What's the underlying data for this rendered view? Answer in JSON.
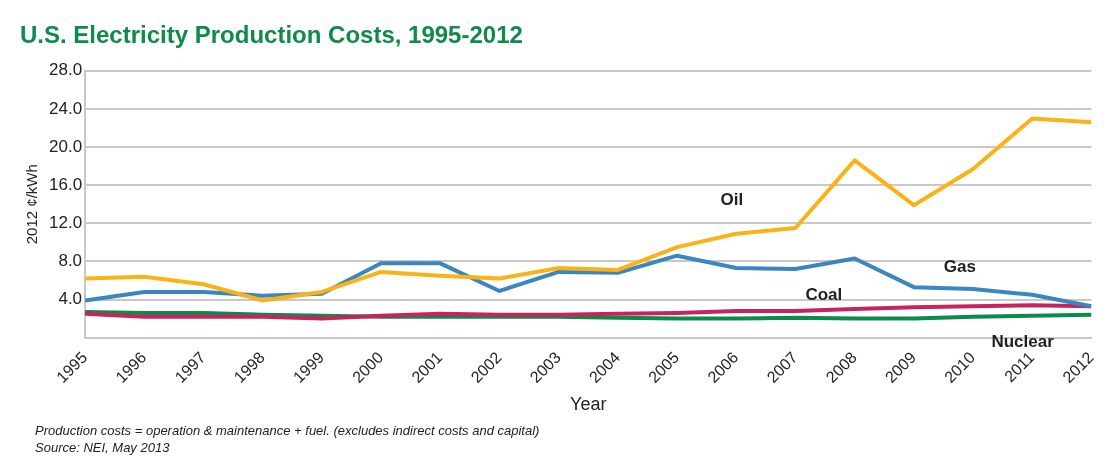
{
  "chart_data": {
    "type": "line",
    "title": "U.S. Electricity Production Costs, 1995-2012",
    "xlabel": "Year",
    "ylabel": "2012 ¢/kWh",
    "x": [
      1995,
      1996,
      1997,
      1998,
      1999,
      2000,
      2001,
      2002,
      2003,
      2004,
      2005,
      2006,
      2007,
      2008,
      2009,
      2010,
      2011,
      2012
    ],
    "xlim": [
      1995,
      2012
    ],
    "xticks": [
      1995,
      1996,
      1997,
      1998,
      1999,
      2000,
      2001,
      2002,
      2003,
      2004,
      2005,
      2006,
      2007,
      2008,
      2009,
      2010,
      2011,
      2012
    ],
    "ylim": [
      0,
      28
    ],
    "yticks": [
      {
        "value": 0,
        "label": null
      },
      {
        "value": 4,
        "label": "4.0"
      },
      {
        "value": 8,
        "label": "8.0"
      },
      {
        "value": 12,
        "label": "12.0"
      },
      {
        "value": 16,
        "label": "16.0"
      },
      {
        "value": 20,
        "label": "20.0"
      },
      {
        "value": 24,
        "label": "24.0"
      },
      {
        "value": 28,
        "label": "28.0"
      }
    ],
    "series": [
      {
        "name": "Oil",
        "color": "#fbb217",
        "values": [
          6.2,
          6.4,
          5.6,
          3.9,
          4.8,
          6.9,
          6.5,
          6.2,
          7.3,
          7.1,
          9.5,
          10.9,
          11.5,
          18.6,
          13.9,
          17.7,
          23.0,
          22.6
        ]
      },
      {
        "name": "Gas",
        "color": "#3a87c0",
        "values": [
          3.9,
          4.8,
          4.8,
          4.4,
          4.6,
          7.8,
          7.8,
          4.9,
          6.9,
          6.8,
          8.6,
          7.3,
          7.2,
          8.3,
          5.3,
          5.1,
          4.5,
          3.3
        ]
      },
      {
        "name": "Coal",
        "color": "#c7245e",
        "values": [
          2.5,
          2.2,
          2.2,
          2.2,
          2.0,
          2.3,
          2.5,
          2.4,
          2.4,
          2.5,
          2.6,
          2.8,
          2.8,
          3.0,
          3.2,
          3.3,
          3.4,
          3.3
        ]
      },
      {
        "name": "Nuclear",
        "color": "#0b8a4a",
        "values": [
          2.7,
          2.6,
          2.6,
          2.4,
          2.3,
          2.2,
          2.2,
          2.2,
          2.2,
          2.1,
          2.0,
          2.0,
          2.1,
          2.0,
          2.0,
          2.2,
          2.3,
          2.4
        ]
      }
    ],
    "grid": "y",
    "legend": false,
    "marker": "none",
    "line_style": "solid",
    "annotations": [
      "Production costs = operation & maintenance + fuel. (excludes indirect costs and capital)",
      "Source: NEI, May 2013"
    ]
  }
}
